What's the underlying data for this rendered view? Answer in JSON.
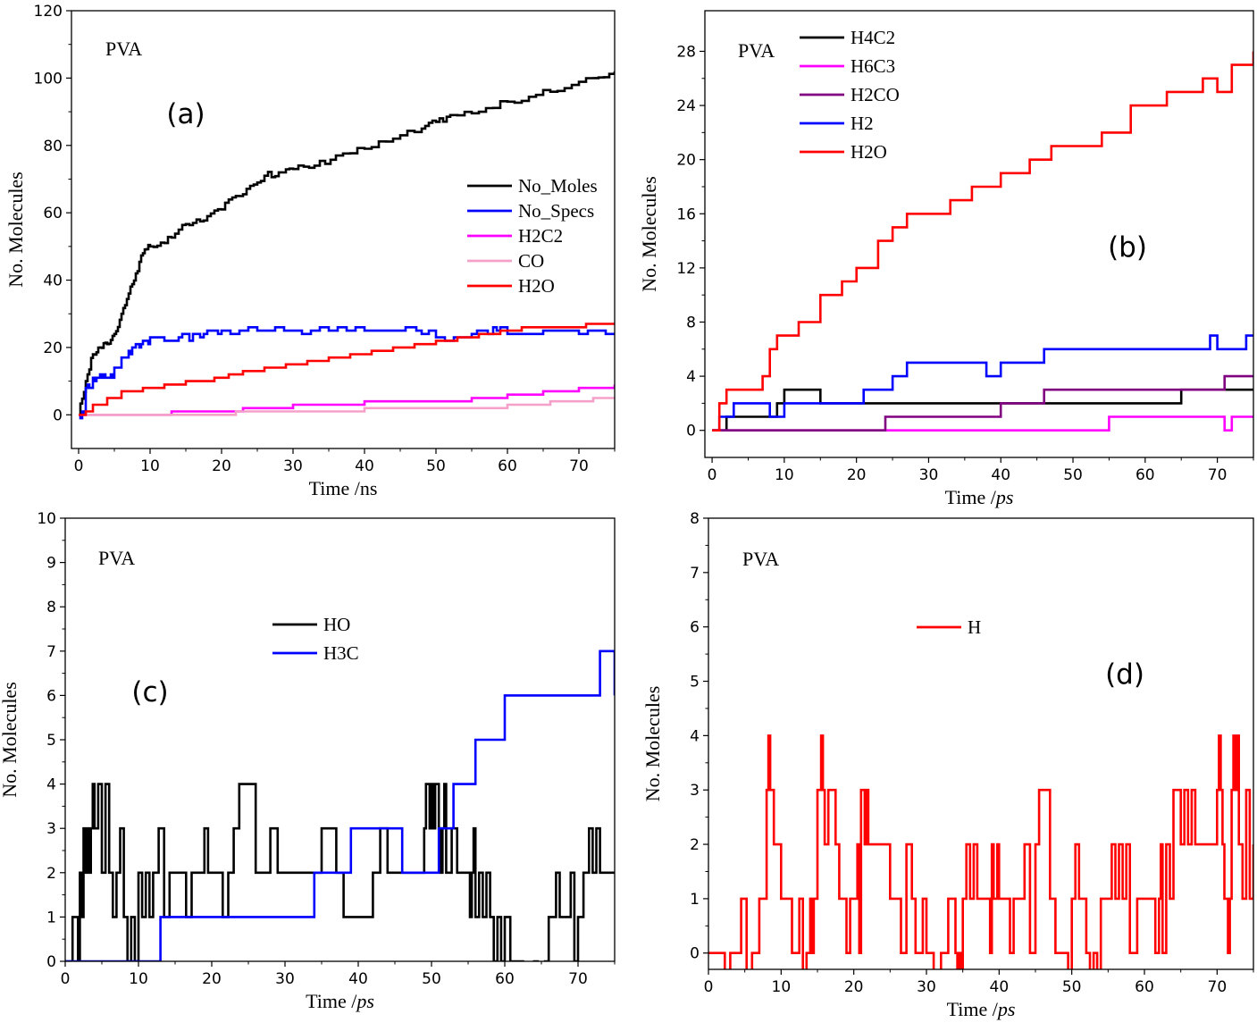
{
  "chart_data": [
    {
      "id": "a",
      "type": "line",
      "panel_label": "(a)",
      "annotation": "PVA",
      "xlabel": "Time /ns",
      "ylabel": "No. Molecules",
      "xlim": [
        -1,
        75
      ],
      "ylim": [
        -10,
        120
      ],
      "xticks": [
        0,
        10,
        20,
        30,
        40,
        50,
        60,
        70
      ],
      "yticks": [
        0,
        20,
        40,
        60,
        80,
        100,
        120
      ],
      "legend_position": "right",
      "series": [
        {
          "name": "No_Moles",
          "color": "#000000",
          "style": "noisy",
          "x": [
            0,
            1,
            2,
            3,
            4,
            5,
            6,
            7,
            8,
            9,
            10,
            12,
            14,
            16,
            18,
            20,
            22,
            24,
            26,
            28,
            30,
            33,
            36,
            40,
            44,
            48,
            50,
            52,
            56,
            60,
            64,
            68,
            72,
            75
          ],
          "y": [
            0,
            10,
            18,
            20,
            21,
            24,
            30,
            36,
            42,
            48,
            50,
            51,
            55,
            57,
            59,
            61,
            65,
            68,
            71,
            72,
            73,
            74,
            77,
            79,
            82,
            85,
            87,
            89,
            90,
            93,
            95,
            97,
            100,
            102
          ]
        },
        {
          "name": "No_Specs",
          "color": "#0000ff",
          "style": "noisy",
          "x": [
            0,
            1,
            2,
            3,
            4,
            5,
            6,
            7,
            8,
            9,
            10,
            12,
            14,
            16,
            18,
            20,
            25,
            30,
            35,
            40,
            45,
            48,
            50,
            55,
            58,
            60,
            65,
            70,
            75
          ],
          "y": [
            0,
            8,
            11,
            12,
            11,
            14,
            17,
            19,
            21,
            22,
            23,
            22,
            23,
            24,
            25,
            25,
            25,
            25,
            25,
            25,
            25,
            24,
            23,
            24,
            26,
            24,
            25,
            24,
            24
          ]
        },
        {
          "name": "H2C2",
          "color": "#ff00ff",
          "style": "step",
          "x": [
            0,
            10,
            13,
            17,
            20,
            23,
            27,
            30,
            35,
            40,
            45,
            50,
            55,
            60,
            65,
            70,
            75
          ],
          "y": [
            0,
            0,
            1,
            1,
            1,
            2,
            2,
            3,
            3,
            4,
            4,
            4,
            5,
            6,
            7,
            8,
            9
          ]
        },
        {
          "name": "CO",
          "color": "#f5a0c8",
          "style": "step",
          "x": [
            0,
            10,
            15,
            22,
            30,
            40,
            50,
            60,
            66,
            72,
            75
          ],
          "y": [
            0,
            0,
            0,
            1,
            1,
            2,
            2,
            3,
            4,
            5,
            5
          ]
        },
        {
          "name": "H2O",
          "color": "#ff0000",
          "style": "step",
          "x": [
            0,
            1,
            2,
            4,
            6,
            9,
            12,
            15,
            19,
            21,
            23,
            26,
            29,
            32,
            35,
            38,
            41,
            44,
            47,
            50,
            53,
            56,
            59,
            62,
            65,
            68,
            71,
            75
          ],
          "y": [
            0,
            1,
            3,
            5,
            7,
            8,
            9,
            10,
            11,
            12,
            13,
            14,
            15,
            16,
            17,
            18,
            19,
            20,
            21,
            22,
            23,
            24,
            25,
            26,
            26,
            26,
            27,
            27
          ]
        }
      ]
    },
    {
      "id": "b",
      "type": "line",
      "panel_label": "(b)",
      "annotation": "PVA",
      "xlabel": "Time /ps",
      "ylabel": "No. Molecules",
      "xlim": [
        -1,
        75
      ],
      "ylim": [
        -2,
        31
      ],
      "xticks": [
        0,
        10,
        20,
        30,
        40,
        50,
        60,
        70
      ],
      "yticks": [
        0,
        4,
        8,
        12,
        16,
        20,
        24,
        28
      ],
      "legend_position": "top-left",
      "series": [
        {
          "name": "H4C2",
          "color": "#000000",
          "style": "step",
          "x": [
            0,
            1,
            2,
            8,
            9,
            10,
            13,
            15,
            20,
            30,
            40,
            50,
            60,
            64,
            65,
            70,
            72,
            75
          ],
          "y": [
            0,
            0,
            1,
            1,
            2,
            3,
            3,
            2,
            2,
            2,
            2,
            2,
            2,
            2,
            3,
            3,
            3,
            3
          ]
        },
        {
          "name": "H6C3",
          "color": "#ff00ff",
          "style": "step",
          "x": [
            0,
            10,
            20,
            30,
            40,
            50,
            55,
            60,
            65,
            70,
            71,
            72,
            75
          ],
          "y": [
            0,
            0,
            0,
            0,
            0,
            0,
            1,
            1,
            1,
            1,
            0,
            1,
            1
          ]
        },
        {
          "name": "H2CO",
          "color": "#800080",
          "style": "step",
          "x": [
            0,
            10,
            20,
            24,
            28,
            31,
            35,
            40,
            46,
            50,
            53,
            58,
            62,
            66,
            71,
            73,
            75
          ],
          "y": [
            0,
            0,
            0,
            1,
            1,
            1,
            1,
            2,
            3,
            3,
            3,
            3,
            3,
            3,
            4,
            4,
            4
          ]
        },
        {
          "name": "H2",
          "color": "#0000ff",
          "style": "step",
          "x": [
            0,
            1,
            3,
            8,
            10,
            15,
            21,
            25,
            27,
            30,
            35,
            38,
            40,
            46,
            50,
            55,
            60,
            65,
            69,
            70,
            72,
            74,
            75
          ],
          "y": [
            0,
            1,
            2,
            1,
            2,
            2,
            3,
            4,
            5,
            5,
            5,
            4,
            5,
            6,
            6,
            6,
            6,
            6,
            7,
            6,
            6,
            7,
            7
          ]
        },
        {
          "name": "H2O",
          "color": "#ff0000",
          "style": "step",
          "x": [
            0,
            1,
            2,
            5,
            7,
            8,
            9,
            12,
            15,
            18,
            20,
            23,
            25,
            27,
            30,
            33,
            36,
            40,
            44,
            47,
            50,
            54,
            58,
            63,
            68,
            70,
            72,
            74,
            75
          ],
          "y": [
            0,
            2,
            3,
            3,
            4,
            6,
            7,
            8,
            10,
            11,
            12,
            14,
            15,
            16,
            16,
            17,
            18,
            19,
            20,
            21,
            21,
            22,
            24,
            25,
            26,
            25,
            27,
            27,
            28
          ]
        }
      ]
    },
    {
      "id": "c",
      "type": "line",
      "panel_label": "(c)",
      "annotation": "PVA",
      "xlabel": "Time /ps",
      "ylabel": "No. Molecules",
      "xlim": [
        0,
        75
      ],
      "ylim": [
        0,
        10
      ],
      "xticks": [
        0,
        10,
        20,
        30,
        40,
        50,
        60,
        70
      ],
      "yticks": [
        0,
        1,
        2,
        3,
        4,
        5,
        6,
        7,
        8,
        9,
        10
      ],
      "legend_position": "upper-middle",
      "series": [
        {
          "name": "HO",
          "color": "#000000",
          "style": "noisy",
          "x": [
            0,
            1,
            2,
            3,
            4,
            6,
            8,
            10,
            12,
            15,
            18,
            20,
            23,
            26,
            30,
            34,
            38,
            42,
            46,
            49,
            50,
            51,
            52,
            55,
            56,
            58,
            60,
            61,
            64,
            66,
            68,
            70,
            71,
            73,
            75
          ],
          "y": [
            0,
            1,
            2,
            3,
            3,
            2,
            1,
            2,
            2,
            2,
            2,
            2,
            3,
            2,
            2,
            2,
            1,
            2,
            2,
            3,
            4,
            3,
            2,
            2,
            1,
            1,
            1,
            0,
            0,
            1,
            1,
            1,
            2,
            2,
            2
          ]
        },
        {
          "name": "H3C",
          "color": "#0000ff",
          "style": "step",
          "x": [
            0,
            10,
            11,
            13,
            17,
            19,
            20,
            25,
            30,
            34,
            39,
            43,
            46,
            49,
            51,
            53,
            56,
            59,
            60,
            65,
            70,
            73,
            75
          ],
          "y": [
            0,
            0,
            0,
            1,
            1,
            1,
            1,
            1,
            1,
            2,
            3,
            3,
            2,
            2,
            3,
            4,
            5,
            5,
            6,
            6,
            6,
            7,
            6
          ]
        }
      ]
    },
    {
      "id": "d",
      "type": "line",
      "panel_label": "(d)",
      "annotation": "PVA",
      "xlabel": "Time /ps",
      "ylabel": "No. Molecules",
      "xlim": [
        0,
        75
      ],
      "ylim": [
        -0.3,
        8
      ],
      "xticks": [
        0,
        10,
        20,
        30,
        40,
        50,
        60,
        70
      ],
      "yticks": [
        0,
        1,
        2,
        3,
        4,
        5,
        6,
        7,
        8
      ],
      "legend_position": "upper-middle",
      "series": [
        {
          "name": "H",
          "color": "#ff0000",
          "style": "noisy",
          "x": [
            0,
            3,
            6,
            7,
            8,
            9,
            10,
            12,
            14,
            15,
            16,
            18,
            20,
            21,
            22,
            25,
            28,
            30,
            34,
            35,
            36,
            38,
            39,
            40,
            42,
            45,
            47,
            48,
            50,
            52,
            54,
            56,
            58,
            60,
            62,
            63,
            64,
            65,
            67,
            70,
            71,
            72,
            73,
            75
          ],
          "y": [
            0,
            0,
            0,
            1,
            3,
            2,
            1,
            0,
            1,
            3,
            2,
            1,
            1,
            3,
            2,
            1,
            1,
            0,
            0,
            1,
            1,
            1,
            2,
            1,
            1,
            2,
            1,
            0,
            1,
            0,
            1,
            1,
            0,
            1,
            1,
            2,
            3,
            2,
            2,
            3,
            1,
            3,
            2,
            2
          ]
        }
      ]
    }
  ]
}
